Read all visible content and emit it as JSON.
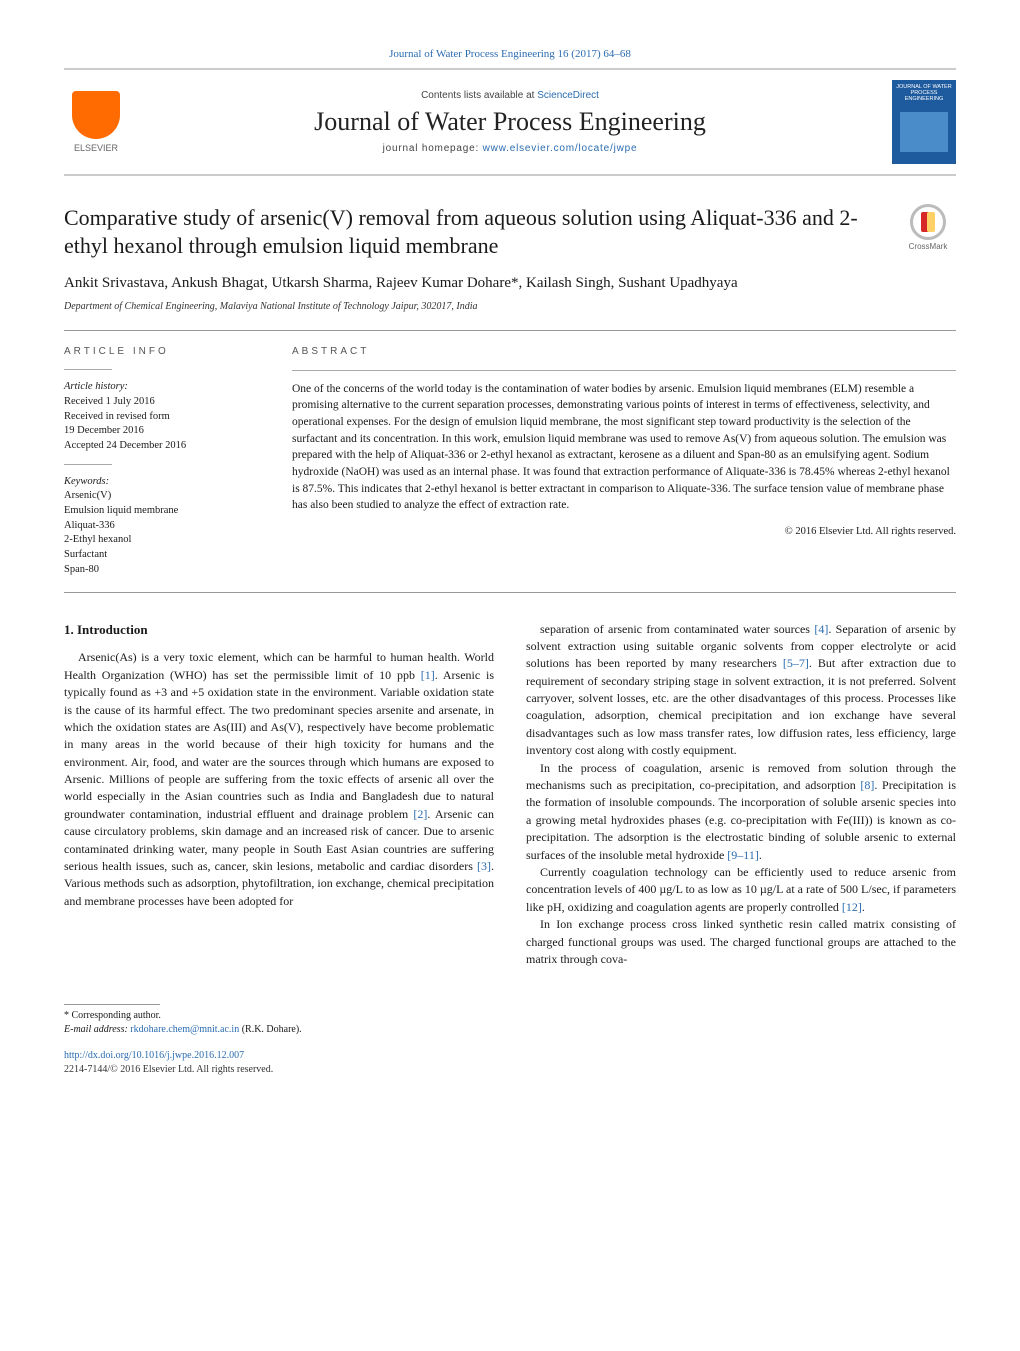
{
  "journal_ref": "Journal of Water Process Engineering 16 (2017) 64–68",
  "header": {
    "contents_prefix": "Contents lists available at ",
    "contents_link": "ScienceDirect",
    "journal_name": "Journal of Water Process Engineering",
    "homepage_prefix": "journal homepage: ",
    "homepage_url": "www.elsevier.com/locate/jwpe",
    "publisher_logo_text": "ELSEVIER",
    "cover_text": "JOURNAL OF WATER PROCESS ENGINEERING"
  },
  "crossmark_label": "CrossMark",
  "title": "Comparative study of arsenic(V) removal from aqueous solution using Aliquat-336 and 2-ethyl hexanol through emulsion liquid membrane",
  "authors": "Ankit Srivastava, Ankush Bhagat, Utkarsh Sharma, Rajeev Kumar Dohare*, Kailash Singh, Sushant Upadhyaya",
  "affiliation": "Department of Chemical Engineering, Malaviya National Institute of Technology Jaipur, 302017, India",
  "article_info": {
    "section_head": "ARTICLE INFO",
    "history_title": "Article history:",
    "history": [
      "Received 1 July 2016",
      "Received in revised form",
      "19 December 2016",
      "Accepted 24 December 2016"
    ],
    "keywords_title": "Keywords:",
    "keywords": [
      "Arsenic(V)",
      "Emulsion liquid membrane",
      "Aliquat-336",
      "2-Ethyl hexanol",
      "Surfactant",
      "Span-80"
    ]
  },
  "abstract": {
    "section_head": "ABSTRACT",
    "text": "One of the concerns of the world today is the contamination of water bodies by arsenic. Emulsion liquid membranes (ELM) resemble a promising alternative to the current separation processes, demonstrating various points of interest in terms of effectiveness, selectivity, and operational expenses. For the design of emulsion liquid membrane, the most significant step toward productivity is the selection of the surfactant and its concentration. In this work, emulsion liquid membrane was used to remove As(V) from aqueous solution. The emulsion was prepared with the help of Aliquat-336 or 2-ethyl hexanol as extractant, kerosene as a diluent and Span-80 as an emulsifying agent. Sodium hydroxide (NaOH) was used as an internal phase. It was found that extraction performance of Aliquate-336 is 78.45% whereas 2-ethyl hexanol is 87.5%. This indicates that 2-ethyl hexanol is better extractant in comparison to Aliquate-336. The surface tension value of membrane phase has also been studied to analyze the effect of extraction rate.",
    "copyright": "© 2016 Elsevier Ltd. All rights reserved."
  },
  "body": {
    "intro_heading": "1. Introduction",
    "col1_p1": "Arsenic(As) is a very toxic element, which can be harmful to human health. World Health Organization (WHO) has set the permissible limit of 10 ppb [1]. Arsenic is typically found as +3 and +5 oxidation state in the environment. Variable oxidation state is the cause of its harmful effect. The two predominant species arsenite and arsenate, in which the oxidation states are As(III) and As(V), respectively have become problematic in many areas in the world because of their high toxicity for humans and the environment. Air, food, and water are the sources through which humans are exposed to Arsenic. Millions of people are suffering from the toxic effects of arsenic all over the world especially in the Asian countries such as India and Bangladesh due to natural groundwater contamination, industrial effluent and drainage problem [2]. Arsenic can cause circulatory problems, skin damage and an increased risk of cancer. Due to arsenic contaminated drinking water, many people in South East Asian countries are suffering serious health issues, such as, cancer, skin lesions, metabolic and cardiac disorders [3]. Various methods such as adsorption, phytofiltration, ion exchange, chemical precipitation and membrane processes have been adopted for",
    "col2_p1": "separation of arsenic from contaminated water sources [4]. Separation of arsenic by solvent extraction using suitable organic solvents from copper electrolyte or acid solutions has been reported by many researchers [5–7]. But after extraction due to requirement of secondary striping stage in solvent extraction, it is not preferred. Solvent carryover, solvent losses, etc. are the other disadvantages of this process. Processes like coagulation, adsorption, chemical precipitation and ion exchange have several disadvantages such as low mass transfer rates, low diffusion rates, less efficiency, large inventory cost along with costly equipment.",
    "col2_p2": "In the process of coagulation, arsenic is removed from solution through the mechanisms such as precipitation, co-precipitation, and adsorption [8]. Precipitation is the formation of insoluble compounds. The incorporation of soluble arsenic species into a growing metal hydroxides phases (e.g. co-precipitation with Fe(III)) is known as co-precipitation. The adsorption is the electrostatic binding of soluble arsenic to external surfaces of the insoluble metal hydroxide [9–11].",
    "col2_p3": "Currently coagulation technology can be efficiently used to reduce arsenic from concentration levels of 400 µg/L to as low as 10 µg/L at a rate of 500 L/sec, if parameters like pH, oxidizing and coagulation agents are properly controlled [12].",
    "col2_p4": "In Ion exchange process cross linked synthetic resin called matrix consisting of charged functional groups was used. The charged functional groups are attached to the matrix through cova-"
  },
  "footer": {
    "corr_label": "* Corresponding author.",
    "email_label": "E-mail address: ",
    "email": "rkdohare.chem@mnit.ac.in",
    "email_person": " (R.K. Dohare).",
    "doi": "http://dx.doi.org/10.1016/j.jwpe.2016.12.007",
    "issn": "2214-7144/© 2016 Elsevier Ltd. All rights reserved."
  },
  "refs": {
    "r1": "[1]",
    "r2": "[2]",
    "r3": "[3]",
    "r4": "[4]",
    "r57": "[5–7]",
    "r8": "[8]",
    "r911": "[9–11]",
    "r12": "[12]"
  },
  "colors": {
    "link": "#2b6cb0",
    "elsevier_orange": "#ff6b00",
    "cover_blue": "#1e5a9e",
    "rule": "#999999"
  }
}
